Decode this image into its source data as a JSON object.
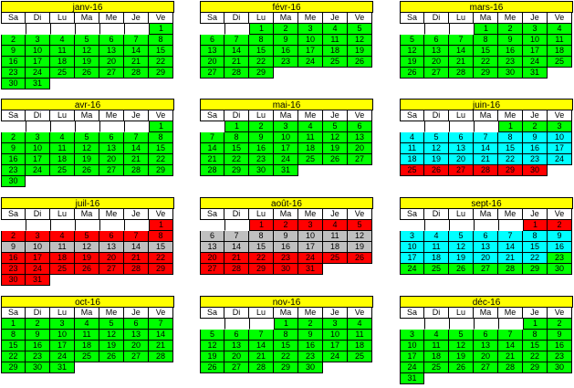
{
  "weekday_headers": [
    "Sa",
    "Di",
    "Lu",
    "Ma",
    "Me",
    "Je",
    "Ve"
  ],
  "colors": {
    "title": "#ffff00",
    "green": "#00ff00",
    "cyan": "#00ffff",
    "red": "#ff0000",
    "grey": "#c0c0c0"
  },
  "months": [
    {
      "title": "janv-16",
      "start": 6,
      "days": 31,
      "status": [
        "g"
      ]
    },
    {
      "title": "févr-16",
      "start": 2,
      "days": 29,
      "status": [
        "g"
      ]
    },
    {
      "title": "mars-16",
      "start": 3,
      "days": 31,
      "status": [
        "g"
      ]
    },
    {
      "title": "avr-16",
      "start": 6,
      "days": 30,
      "status": [
        "g"
      ]
    },
    {
      "title": "mai-16",
      "start": 1,
      "days": 31,
      "status": [
        "g"
      ]
    },
    {
      "title": "juin-16",
      "start": 4,
      "days": 30,
      "status": [
        "g",
        "g",
        "g",
        "c",
        "c",
        "c",
        "c",
        "c",
        "c",
        "c",
        "c",
        "c",
        "c",
        "c",
        "c",
        "c",
        "c",
        "c",
        "c",
        "c",
        "c",
        "c",
        "c",
        "c",
        "r",
        "r",
        "r",
        "r",
        "r",
        "r"
      ]
    },
    {
      "title": "juil-16",
      "start": 6,
      "days": 31,
      "status": [
        "r",
        "r",
        "r",
        "r",
        "r",
        "r",
        "r",
        "r",
        "x",
        "x",
        "x",
        "x",
        "x",
        "x",
        "x",
        "r",
        "r",
        "r",
        "r",
        "r",
        "r",
        "r",
        "r",
        "r",
        "r",
        "r",
        "r",
        "r",
        "r",
        "r",
        "r"
      ]
    },
    {
      "title": "août-16",
      "start": 2,
      "days": 31,
      "status": [
        "r",
        "r",
        "r",
        "r",
        "r",
        "x",
        "x",
        "x",
        "x",
        "x",
        "x",
        "x",
        "x",
        "x",
        "x",
        "x",
        "x",
        "x",
        "x",
        "r",
        "r",
        "r",
        "r",
        "r",
        "r",
        "r",
        "r",
        "r",
        "r",
        "r",
        "r"
      ]
    },
    {
      "title": "sept-16",
      "start": 5,
      "days": 30,
      "status": [
        "r",
        "r",
        "c",
        "c",
        "c",
        "c",
        "c",
        "c",
        "c",
        "c",
        "c",
        "c",
        "c",
        "c",
        "c",
        "c",
        "c",
        "c",
        "c",
        "c",
        "c",
        "c",
        "g",
        "g",
        "g",
        "g",
        "g",
        "g",
        "g",
        "g"
      ]
    },
    {
      "title": "oct-16",
      "start": 0,
      "days": 31,
      "status": [
        "g"
      ]
    },
    {
      "title": "nov-16",
      "start": 3,
      "days": 30,
      "status": [
        "g"
      ]
    },
    {
      "title": "déc-16",
      "start": 5,
      "days": 31,
      "status": [
        "g"
      ]
    }
  ]
}
